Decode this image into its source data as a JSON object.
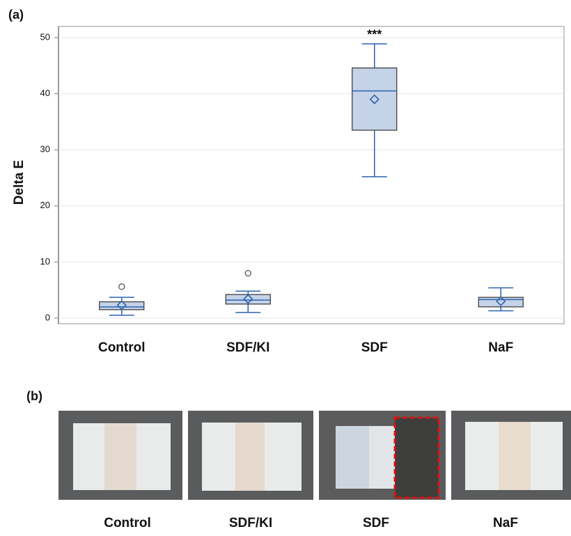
{
  "chart_data": {
    "type": "box",
    "panel_label": "(a)",
    "y_label": "Delta E",
    "categories": [
      "Control",
      "SDF/KI",
      "SDF",
      "NaF"
    ],
    "min": [
      0.5,
      1.0,
      25.2,
      1.3
    ],
    "q1": [
      1.5,
      2.5,
      33.5,
      2.0
    ],
    "median": [
      2.0,
      3.2,
      40.5,
      3.3
    ],
    "q3": [
      2.9,
      4.2,
      44.6,
      3.7
    ],
    "max": [
      3.7,
      4.8,
      48.9,
      5.4
    ],
    "mean": [
      2.3,
      3.4,
      39.0,
      3.0
    ],
    "outliers": [
      [
        5.6
      ],
      [
        8.0
      ],
      [],
      []
    ],
    "annotations": [
      null,
      null,
      "***",
      null
    ],
    "box_color": "#c5d3e8",
    "line_color": "#2b62b0",
    "ylim": [
      -1,
      52
    ],
    "yticks": [
      0,
      10,
      20,
      30,
      40,
      50
    ],
    "grid": true
  },
  "panel_b": {
    "panel_label": "(b)",
    "captions": [
      "Control",
      "SDF/KI",
      "SDF",
      "NaF"
    ]
  }
}
